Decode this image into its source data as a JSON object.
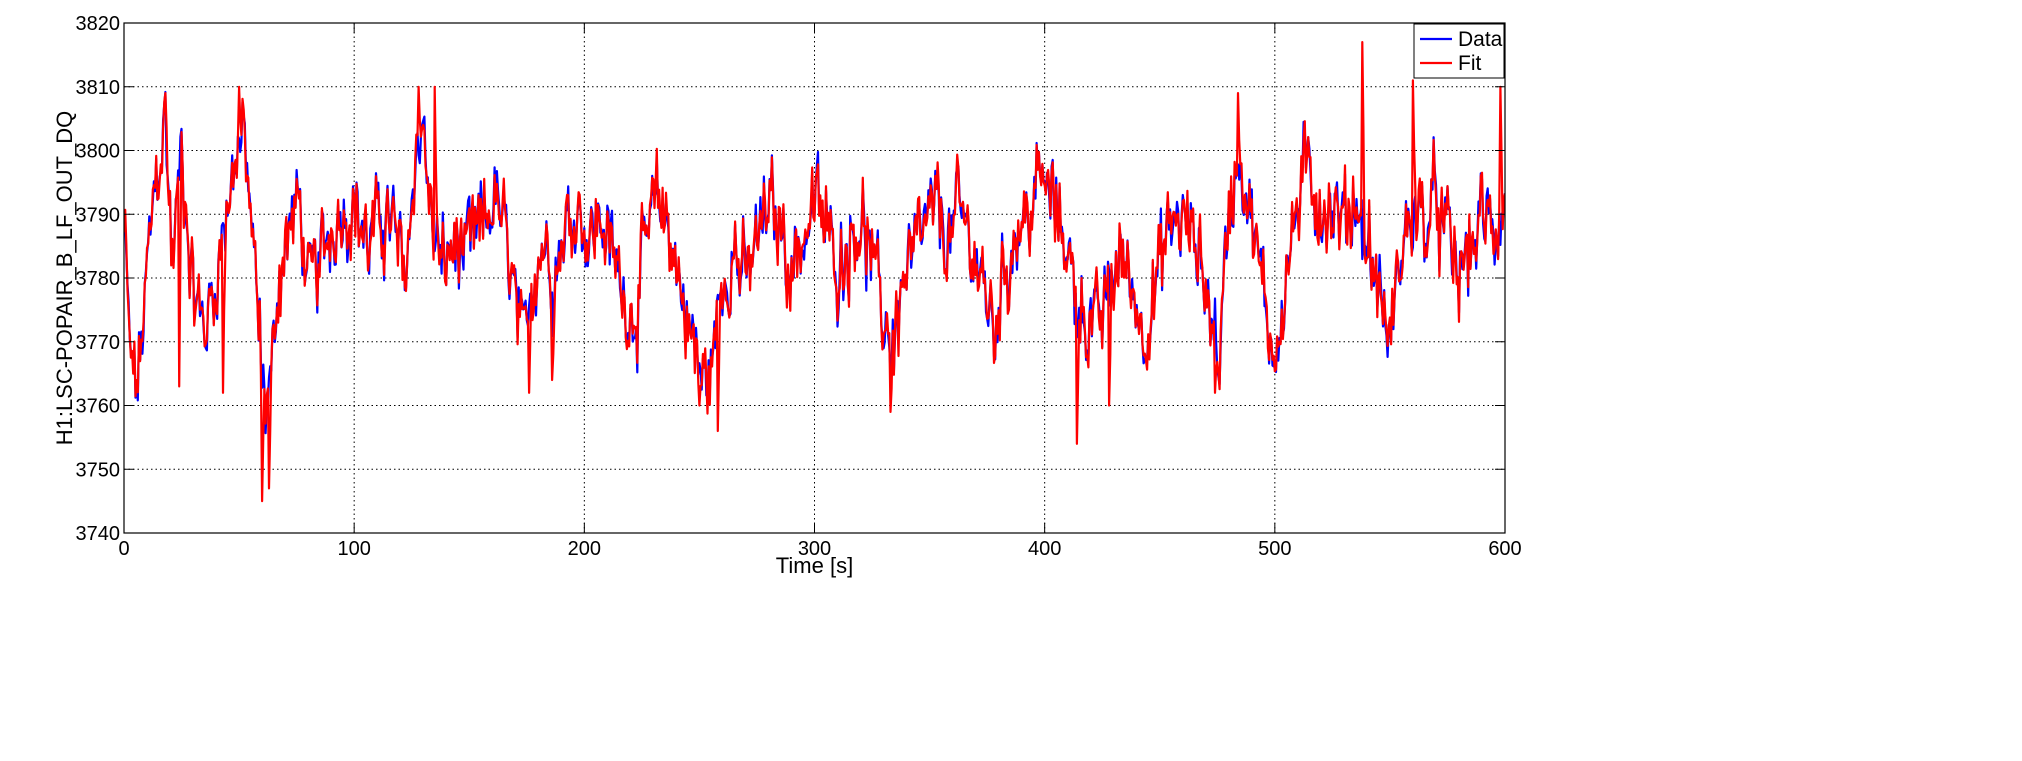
{
  "chart_data": {
    "type": "line",
    "title": "",
    "xlabel": "Time [s]",
    "ylabel": "H1:LSC-POPAIR_B_LF_OUT_DQ",
    "xlim": [
      0,
      600
    ],
    "ylim": [
      3740,
      3820
    ],
    "x_ticks": [
      0,
      100,
      200,
      300,
      400,
      500,
      600
    ],
    "y_ticks": [
      3740,
      3750,
      3760,
      3770,
      3780,
      3790,
      3800,
      3810,
      3820
    ],
    "x_tick_labels": [
      "0",
      "100",
      "200",
      "300",
      "400",
      "500",
      "600"
    ],
    "y_tick_labels": [
      "3740",
      "3750",
      "3760",
      "3770",
      "3780",
      "3790",
      "3800",
      "3810",
      "3820"
    ],
    "grid": true,
    "legend_position": "top-right",
    "colors": {
      "Data": "#0000ff",
      "Fit": "#ff0000"
    },
    "sample_interval_s": 0.5,
    "series": [
      {
        "name": "Data",
        "anchors": [
          [
            0,
            3788
          ],
          [
            3,
            3766
          ],
          [
            6,
            3763
          ],
          [
            10,
            3780
          ],
          [
            14,
            3796
          ],
          [
            18,
            3805
          ],
          [
            21,
            3782
          ],
          [
            25,
            3800
          ],
          [
            30,
            3778
          ],
          [
            35,
            3772
          ],
          [
            40,
            3780
          ],
          [
            44,
            3790
          ],
          [
            48,
            3799
          ],
          [
            52,
            3802
          ],
          [
            55,
            3790
          ],
          [
            58,
            3775
          ],
          [
            61,
            3760
          ],
          [
            64,
            3764
          ],
          [
            67,
            3780
          ],
          [
            72,
            3788
          ],
          [
            76,
            3792
          ],
          [
            80,
            3778
          ],
          [
            85,
            3782
          ],
          [
            90,
            3788
          ],
          [
            95,
            3791
          ],
          [
            100,
            3792
          ],
          [
            106,
            3785
          ],
          [
            112,
            3790
          ],
          [
            117,
            3788
          ],
          [
            122,
            3780
          ],
          [
            127,
            3800
          ],
          [
            130,
            3805
          ],
          [
            133,
            3790
          ],
          [
            138,
            3782
          ],
          [
            143,
            3785
          ],
          [
            148,
            3783
          ],
          [
            153,
            3786
          ],
          [
            158,
            3790
          ],
          [
            162,
            3792
          ],
          [
            166,
            3785
          ],
          [
            170,
            3776
          ],
          [
            173,
            3768
          ],
          [
            177,
            3780
          ],
          [
            182,
            3786
          ],
          [
            187,
            3781
          ],
          [
            192,
            3788
          ],
          [
            197,
            3792
          ],
          [
            202,
            3786
          ],
          [
            207,
            3790
          ],
          [
            212,
            3784
          ],
          [
            217,
            3778
          ],
          [
            222,
            3774
          ],
          [
            227,
            3786
          ],
          [
            232,
            3792
          ],
          [
            237,
            3788
          ],
          [
            242,
            3778
          ],
          [
            247,
            3770
          ],
          [
            252,
            3763
          ],
          [
            256,
            3768
          ],
          [
            260,
            3780
          ],
          [
            265,
            3785
          ],
          [
            270,
            3779
          ],
          [
            275,
            3786
          ],
          [
            280,
            3791
          ],
          [
            285,
            3788
          ],
          [
            290,
            3782
          ],
          [
            295,
            3786
          ],
          [
            300,
            3792
          ],
          [
            305,
            3788
          ],
          [
            310,
            3782
          ],
          [
            315,
            3786
          ],
          [
            320,
            3790
          ],
          [
            325,
            3782
          ],
          [
            330,
            3774
          ],
          [
            334,
            3770
          ],
          [
            338,
            3779
          ],
          [
            343,
            3783
          ],
          [
            348,
            3788
          ],
          [
            353,
            3791
          ],
          [
            358,
            3786
          ],
          [
            363,
            3790
          ],
          [
            368,
            3786
          ],
          [
            373,
            3779
          ],
          [
            378,
            3772
          ],
          [
            383,
            3782
          ],
          [
            388,
            3788
          ],
          [
            393,
            3790
          ],
          [
            398,
            3796
          ],
          [
            403,
            3792
          ],
          [
            408,
            3788
          ],
          [
            413,
            3778
          ],
          [
            418,
            3774
          ],
          [
            423,
            3772
          ],
          [
            428,
            3778
          ],
          [
            433,
            3784
          ],
          [
            438,
            3779
          ],
          [
            443,
            3772
          ],
          [
            448,
            3778
          ],
          [
            453,
            3786
          ],
          [
            458,
            3790
          ],
          [
            463,
            3787
          ],
          [
            468,
            3783
          ],
          [
            472,
            3775
          ],
          [
            476,
            3768
          ],
          [
            480,
            3790
          ],
          [
            484,
            3800
          ],
          [
            488,
            3794
          ],
          [
            492,
            3784
          ],
          [
            496,
            3775
          ],
          [
            500,
            3768
          ],
          [
            505,
            3780
          ],
          [
            510,
            3792
          ],
          [
            515,
            3797
          ],
          [
            520,
            3792
          ],
          [
            525,
            3790
          ],
          [
            530,
            3788
          ],
          [
            535,
            3793
          ],
          [
            540,
            3786
          ],
          [
            545,
            3778
          ],
          [
            550,
            3770
          ],
          [
            555,
            3784
          ],
          [
            560,
            3791
          ],
          [
            565,
            3788
          ],
          [
            570,
            3792
          ],
          [
            575,
            3786
          ],
          [
            580,
            3780
          ],
          [
            585,
            3784
          ],
          [
            590,
            3790
          ],
          [
            595,
            3787
          ],
          [
            600,
            3792
          ]
        ]
      },
      {
        "name": "Fit",
        "anchors": [
          [
            0,
            3788
          ],
          [
            3,
            3766
          ],
          [
            6,
            3763
          ],
          [
            10,
            3780
          ],
          [
            14,
            3796
          ],
          [
            18,
            3805
          ],
          [
            21,
            3782
          ],
          [
            25,
            3800
          ],
          [
            30,
            3778
          ],
          [
            35,
            3772
          ],
          [
            40,
            3780
          ],
          [
            44,
            3790
          ],
          [
            48,
            3799
          ],
          [
            52,
            3802
          ],
          [
            55,
            3790
          ],
          [
            58,
            3775
          ],
          [
            61,
            3760
          ],
          [
            64,
            3764
          ],
          [
            67,
            3780
          ],
          [
            72,
            3788
          ],
          [
            76,
            3792
          ],
          [
            80,
            3778
          ],
          [
            85,
            3782
          ],
          [
            90,
            3788
          ],
          [
            95,
            3791
          ],
          [
            100,
            3792
          ],
          [
            106,
            3785
          ],
          [
            112,
            3790
          ],
          [
            117,
            3788
          ],
          [
            122,
            3780
          ],
          [
            127,
            3800
          ],
          [
            130,
            3805
          ],
          [
            133,
            3790
          ],
          [
            138,
            3782
          ],
          [
            143,
            3785
          ],
          [
            148,
            3783
          ],
          [
            153,
            3786
          ],
          [
            158,
            3790
          ],
          [
            162,
            3792
          ],
          [
            166,
            3785
          ],
          [
            170,
            3776
          ],
          [
            173,
            3768
          ],
          [
            177,
            3780
          ],
          [
            182,
            3786
          ],
          [
            187,
            3781
          ],
          [
            192,
            3788
          ],
          [
            197,
            3792
          ],
          [
            202,
            3786
          ],
          [
            207,
            3790
          ],
          [
            212,
            3784
          ],
          [
            217,
            3778
          ],
          [
            222,
            3774
          ],
          [
            227,
            3786
          ],
          [
            232,
            3792
          ],
          [
            237,
            3788
          ],
          [
            242,
            3778
          ],
          [
            247,
            3770
          ],
          [
            252,
            3763
          ],
          [
            256,
            3768
          ],
          [
            260,
            3780
          ],
          [
            265,
            3785
          ],
          [
            270,
            3779
          ],
          [
            275,
            3786
          ],
          [
            280,
            3791
          ],
          [
            285,
            3788
          ],
          [
            290,
            3782
          ],
          [
            295,
            3786
          ],
          [
            300,
            3792
          ],
          [
            305,
            3788
          ],
          [
            310,
            3782
          ],
          [
            315,
            3786
          ],
          [
            320,
            3790
          ],
          [
            325,
            3782
          ],
          [
            330,
            3774
          ],
          [
            334,
            3770
          ],
          [
            338,
            3779
          ],
          [
            343,
            3783
          ],
          [
            348,
            3788
          ],
          [
            353,
            3791
          ],
          [
            358,
            3786
          ],
          [
            363,
            3790
          ],
          [
            368,
            3786
          ],
          [
            373,
            3779
          ],
          [
            378,
            3772
          ],
          [
            383,
            3782
          ],
          [
            388,
            3788
          ],
          [
            393,
            3790
          ],
          [
            398,
            3796
          ],
          [
            403,
            3792
          ],
          [
            408,
            3788
          ],
          [
            413,
            3778
          ],
          [
            418,
            3774
          ],
          [
            423,
            3772
          ],
          [
            428,
            3778
          ],
          [
            433,
            3784
          ],
          [
            438,
            3779
          ],
          [
            443,
            3772
          ],
          [
            448,
            3778
          ],
          [
            453,
            3786
          ],
          [
            458,
            3790
          ],
          [
            463,
            3787
          ],
          [
            468,
            3783
          ],
          [
            472,
            3775
          ],
          [
            476,
            3768
          ],
          [
            480,
            3790
          ],
          [
            484,
            3800
          ],
          [
            488,
            3794
          ],
          [
            492,
            3784
          ],
          [
            496,
            3775
          ],
          [
            500,
            3768
          ],
          [
            505,
            3780
          ],
          [
            510,
            3792
          ],
          [
            515,
            3797
          ],
          [
            520,
            3792
          ],
          [
            525,
            3790
          ],
          [
            530,
            3788
          ],
          [
            535,
            3793
          ],
          [
            540,
            3786
          ],
          [
            545,
            3778
          ],
          [
            550,
            3770
          ],
          [
            555,
            3784
          ],
          [
            560,
            3791
          ],
          [
            565,
            3788
          ],
          [
            570,
            3792
          ],
          [
            575,
            3786
          ],
          [
            580,
            3780
          ],
          [
            585,
            3784
          ],
          [
            590,
            3790
          ],
          [
            595,
            3787
          ],
          [
            600,
            3792
          ]
        ],
        "spikes": [
          [
            18,
            3809
          ],
          [
            24,
            3763
          ],
          [
            43,
            3762
          ],
          [
            50,
            3810
          ],
          [
            60,
            3745
          ],
          [
            63,
            3747
          ],
          [
            128,
            3810
          ],
          [
            135,
            3810
          ],
          [
            176,
            3762
          ],
          [
            186,
            3764
          ],
          [
            250,
            3760
          ],
          [
            258,
            3756
          ],
          [
            333,
            3759
          ],
          [
            414,
            3754
          ],
          [
            428,
            3760
          ],
          [
            474,
            3762
          ],
          [
            484,
            3809
          ],
          [
            538,
            3817
          ],
          [
            560,
            3811
          ],
          [
            598,
            3810
          ]
        ]
      }
    ]
  }
}
